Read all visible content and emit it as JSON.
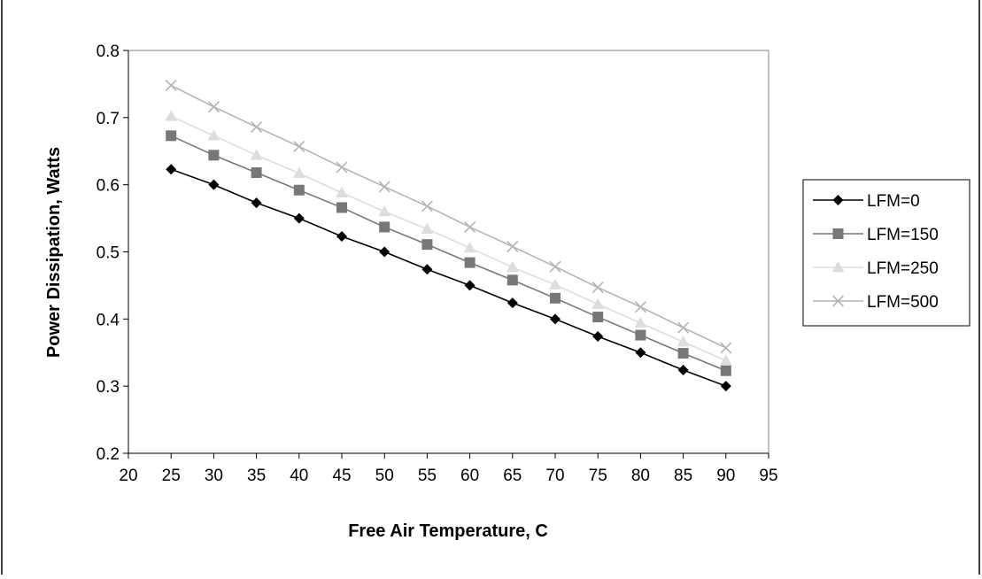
{
  "chart_data": {
    "type": "line",
    "title": "",
    "xlabel": "Free Air Temperature, C",
    "ylabel": "Power Dissipation, Watts",
    "xlim": [
      20,
      95
    ],
    "ylim": [
      0.2,
      0.8
    ],
    "x_ticks": [
      "20",
      "25",
      "30",
      "35",
      "40",
      "45",
      "50",
      "55",
      "60",
      "65",
      "70",
      "75",
      "80",
      "85",
      "90",
      "95"
    ],
    "y_ticks": [
      "0.2",
      "0.3",
      "0.4",
      "0.5",
      "0.6",
      "0.7",
      "0.8"
    ],
    "grid": false,
    "legend_position": "right",
    "x": [
      25,
      30,
      35,
      40,
      45,
      50,
      55,
      60,
      65,
      70,
      75,
      80,
      85,
      90
    ],
    "series": [
      {
        "name": "LFM=0",
        "color": "#000000",
        "marker": "diamond",
        "values": [
          0.623,
          0.6,
          0.573,
          0.55,
          0.523,
          0.5,
          0.474,
          0.45,
          0.424,
          0.4,
          0.374,
          0.35,
          0.324,
          0.3
        ]
      },
      {
        "name": "LFM=150",
        "color": "#777777",
        "marker": "square",
        "values": [
          0.673,
          0.644,
          0.618,
          0.592,
          0.566,
          0.537,
          0.511,
          0.484,
          0.458,
          0.431,
          0.403,
          0.376,
          0.349,
          0.323
        ]
      },
      {
        "name": "LFM=250",
        "color": "#dddddd",
        "marker": "triangle",
        "values": [
          0.702,
          0.673,
          0.644,
          0.617,
          0.588,
          0.56,
          0.534,
          0.506,
          0.477,
          0.451,
          0.422,
          0.394,
          0.366,
          0.338
        ]
      },
      {
        "name": "LFM=500",
        "color": "#b4b4b4",
        "marker": "x",
        "values": [
          0.748,
          0.716,
          0.686,
          0.657,
          0.626,
          0.597,
          0.568,
          0.537,
          0.508,
          0.478,
          0.447,
          0.418,
          0.387,
          0.357
        ]
      }
    ]
  }
}
